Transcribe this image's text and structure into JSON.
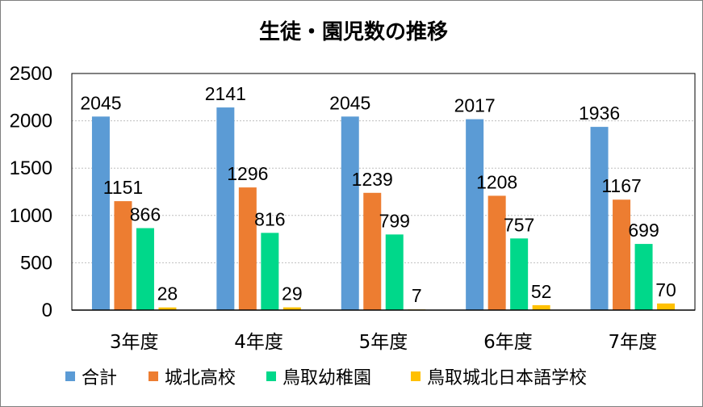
{
  "chart_data": {
    "type": "bar",
    "title": "生徒・園児数の推移",
    "categories": [
      "3年度",
      "4年度",
      "5年度",
      "6年度",
      "7年度"
    ],
    "series": [
      {
        "name": "合計",
        "color": "#5b9bd5",
        "values": [
          2045,
          2141,
          2045,
          2017,
          1936
        ]
      },
      {
        "name": "城北高校",
        "color": "#ed7d31",
        "values": [
          1151,
          1296,
          1239,
          1208,
          1167
        ]
      },
      {
        "name": "鳥取幼稚園",
        "color": "#00d88a",
        "values": [
          866,
          816,
          799,
          757,
          699
        ]
      },
      {
        "name": "鳥取城北日本語学校",
        "color": "#ffc000",
        "values": [
          28,
          29,
          7,
          52,
          70
        ]
      }
    ],
    "ylim": [
      0,
      2500
    ],
    "yticks": [
      0,
      500,
      1000,
      1500,
      2000,
      2500
    ],
    "grid": true,
    "legend": "bottom"
  }
}
